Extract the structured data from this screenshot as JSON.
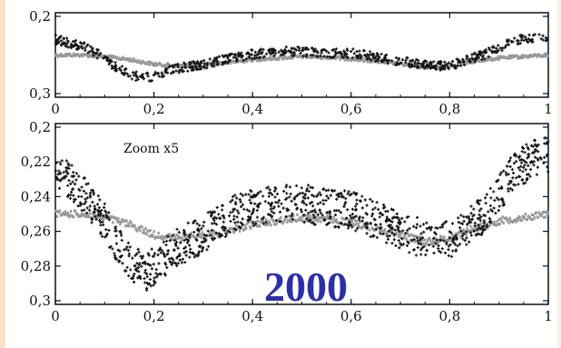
{
  "chart_data": [
    {
      "type": "scatter",
      "title": "",
      "xlabel": "",
      "ylabel": "",
      "xlim": [
        0,
        1
      ],
      "ylim": [
        0.2,
        0.3
      ],
      "y_inverted": true,
      "x_ticks": [
        "0",
        "0,2",
        "0,4",
        "0,6",
        "0,8",
        "1"
      ],
      "y_ticks": [
        "0,2",
        "0,3"
      ],
      "series": [
        {
          "color": "#999999",
          "x": [
            0,
            0.05,
            0.1,
            0.15,
            0.2,
            0.25,
            0.3,
            0.35,
            0.4,
            0.45,
            0.5,
            0.55,
            0.6,
            0.65,
            0.7,
            0.75,
            0.8,
            0.85,
            0.9,
            0.95,
            1.0
          ],
          "y": [
            0.25,
            0.25,
            0.252,
            0.256,
            0.262,
            0.264,
            0.262,
            0.26,
            0.256,
            0.254,
            0.252,
            0.253,
            0.255,
            0.258,
            0.262,
            0.266,
            0.264,
            0.258,
            0.254,
            0.252,
            0.25
          ]
        },
        {
          "color": "#111111",
          "x": [
            0,
            0.03,
            0.06,
            0.09,
            0.12,
            0.15,
            0.18,
            0.21,
            0.24,
            0.27,
            0.3,
            0.33,
            0.36,
            0.39,
            0.42,
            0.45,
            0.48,
            0.51,
            0.54,
            0.57,
            0.6,
            0.63,
            0.66,
            0.69,
            0.72,
            0.75,
            0.78,
            0.81,
            0.84,
            0.87,
            0.9,
            0.93,
            0.96,
            0.99
          ],
          "y": [
            0.23,
            0.235,
            0.24,
            0.25,
            0.265,
            0.275,
            0.28,
            0.275,
            0.268,
            0.265,
            0.262,
            0.258,
            0.254,
            0.25,
            0.248,
            0.246,
            0.245,
            0.246,
            0.247,
            0.248,
            0.248,
            0.25,
            0.254,
            0.258,
            0.26,
            0.262,
            0.264,
            0.262,
            0.255,
            0.25,
            0.24,
            0.232,
            0.228,
            0.226
          ]
        }
      ]
    },
    {
      "type": "scatter",
      "title": "",
      "xlabel": "",
      "ylabel": "",
      "xlim": [
        0,
        1
      ],
      "ylim": [
        0.2,
        0.3
      ],
      "y_inverted": true,
      "x_ticks": [
        "0",
        "0,2",
        "0,4",
        "0,6",
        "0,8",
        "1"
      ],
      "y_ticks": [
        "0,2",
        "0,22",
        "0,24",
        "0,26",
        "0,28",
        "0,3"
      ],
      "annotation": "Zoom x5",
      "series": [
        {
          "color": "#999999",
          "x": [
            0,
            0.05,
            0.1,
            0.15,
            0.2,
            0.25,
            0.3,
            0.35,
            0.4,
            0.45,
            0.5,
            0.55,
            0.6,
            0.65,
            0.7,
            0.75,
            0.8,
            0.85,
            0.9,
            0.95,
            1.0
          ],
          "y": [
            0.25,
            0.25,
            0.252,
            0.256,
            0.262,
            0.264,
            0.262,
            0.26,
            0.256,
            0.254,
            0.252,
            0.253,
            0.255,
            0.258,
            0.262,
            0.266,
            0.264,
            0.258,
            0.254,
            0.252,
            0.25
          ]
        },
        {
          "color": "#111111",
          "x": [
            0,
            0.03,
            0.06,
            0.09,
            0.12,
            0.15,
            0.18,
            0.21,
            0.24,
            0.27,
            0.3,
            0.33,
            0.36,
            0.39,
            0.42,
            0.45,
            0.48,
            0.51,
            0.54,
            0.57,
            0.6,
            0.63,
            0.66,
            0.69,
            0.72,
            0.75,
            0.78,
            0.81,
            0.84,
            0.87,
            0.9,
            0.93,
            0.96,
            0.99
          ],
          "y": [
            0.225,
            0.232,
            0.24,
            0.25,
            0.265,
            0.277,
            0.284,
            0.278,
            0.27,
            0.266,
            0.262,
            0.256,
            0.25,
            0.247,
            0.245,
            0.244,
            0.243,
            0.244,
            0.246,
            0.247,
            0.248,
            0.251,
            0.255,
            0.258,
            0.262,
            0.264,
            0.266,
            0.263,
            0.256,
            0.25,
            0.238,
            0.226,
            0.22,
            0.216
          ]
        }
      ]
    }
  ],
  "overlay_text": {
    "year": "2000"
  },
  "colors": {
    "background_left": "#f6e3c7",
    "background_right": "#fbf1e2",
    "year_text": "#2b2fae",
    "model_points": "#999999",
    "data_points": "#111111"
  }
}
